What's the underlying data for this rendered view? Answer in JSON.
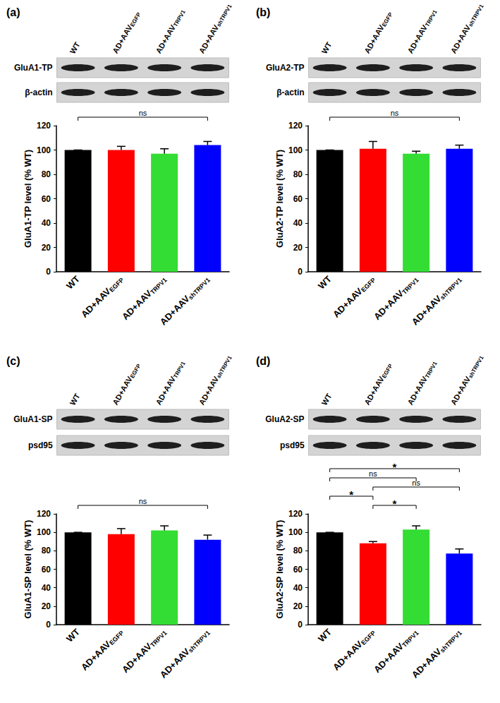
{
  "chart_data": [
    {
      "type": "bar",
      "title": "(a)",
      "ylabel": "GluA1-TP level (% WT)",
      "blot_labels": [
        "GluA1-TP",
        "β-actin"
      ],
      "categories": [
        "WT",
        "AD+AAVEGFP",
        "AD+AAVTRPV1",
        "AD+AAVshTRPV1"
      ],
      "subscripts": [
        null,
        "EGFP",
        "TRPV1",
        "shTRPV1"
      ],
      "values": [
        100,
        100,
        97,
        104
      ],
      "errors": [
        0,
        3,
        4,
        3
      ],
      "colors": [
        "#000000",
        "#ff0000",
        "#33dd33",
        "#0000ff"
      ],
      "ylim": [
        0,
        120
      ],
      "yticks": [
        0,
        20,
        40,
        60,
        80,
        100,
        120
      ],
      "grid": false,
      "comparisons": [
        {
          "from": 0,
          "to": 3,
          "label": "ns"
        }
      ]
    },
    {
      "type": "bar",
      "title": "(b)",
      "ylabel": "GluA2-TP level (% WT)",
      "blot_labels": [
        "GluA2-TP",
        "β-actin"
      ],
      "categories": [
        "WT",
        "AD+AAVEGFP",
        "AD+AAVTRPV1",
        "AD+AAVshTRPV1"
      ],
      "subscripts": [
        null,
        "EGFP",
        "TRPV1",
        "shTRPV1"
      ],
      "values": [
        100,
        101,
        97,
        101
      ],
      "errors": [
        0,
        6,
        2,
        3
      ],
      "colors": [
        "#000000",
        "#ff0000",
        "#33dd33",
        "#0000ff"
      ],
      "ylim": [
        0,
        120
      ],
      "yticks": [
        0,
        20,
        40,
        60,
        80,
        100,
        120
      ],
      "grid": false,
      "comparisons": [
        {
          "from": 0,
          "to": 3,
          "label": "ns"
        }
      ]
    },
    {
      "type": "bar",
      "title": "(c)",
      "ylabel": "GluA1-SP level (% WT)",
      "blot_labels": [
        "GluA1-SP",
        "psd95"
      ],
      "categories": [
        "WT",
        "AD+AAVEGFP",
        "AD+AAVTRPV1",
        "AD+AAVshTRPV1"
      ],
      "subscripts": [
        null,
        "EGFP",
        "TRPV1",
        "shTRPV1"
      ],
      "values": [
        100,
        98,
        102,
        92
      ],
      "errors": [
        0,
        6,
        5,
        5
      ],
      "colors": [
        "#000000",
        "#ff0000",
        "#33dd33",
        "#0000ff"
      ],
      "ylim": [
        0,
        120
      ],
      "yticks": [
        0,
        20,
        40,
        60,
        80,
        100,
        120
      ],
      "grid": false,
      "comparisons": [
        {
          "from": 0,
          "to": 3,
          "label": "ns"
        }
      ]
    },
    {
      "type": "bar",
      "title": "(d)",
      "ylabel": "GluA2-SP level (% WT)",
      "blot_labels": [
        "GluA2-SP",
        "psd95"
      ],
      "categories": [
        "WT",
        "AD+AAVEGFP",
        "AD+AAVTRPV1",
        "AD+AAVshTRPV1"
      ],
      "subscripts": [
        null,
        "EGFP",
        "TRPV1",
        "shTRPV1"
      ],
      "values": [
        100,
        88,
        103,
        77
      ],
      "errors": [
        0,
        2,
        4,
        5
      ],
      "colors": [
        "#000000",
        "#ff0000",
        "#33dd33",
        "#0000ff"
      ],
      "ylim": [
        0,
        120
      ],
      "yticks": [
        0,
        20,
        40,
        60,
        80,
        100,
        120
      ],
      "grid": false,
      "comparisons": [
        {
          "from": 1,
          "to": 2,
          "label": "*"
        },
        {
          "from": 0,
          "to": 1,
          "label": "*"
        },
        {
          "from": 1,
          "to": 3,
          "label": "ns"
        },
        {
          "from": 0,
          "to": 2,
          "label": "ns"
        },
        {
          "from": 0,
          "to": 3,
          "label": "*"
        }
      ]
    }
  ]
}
